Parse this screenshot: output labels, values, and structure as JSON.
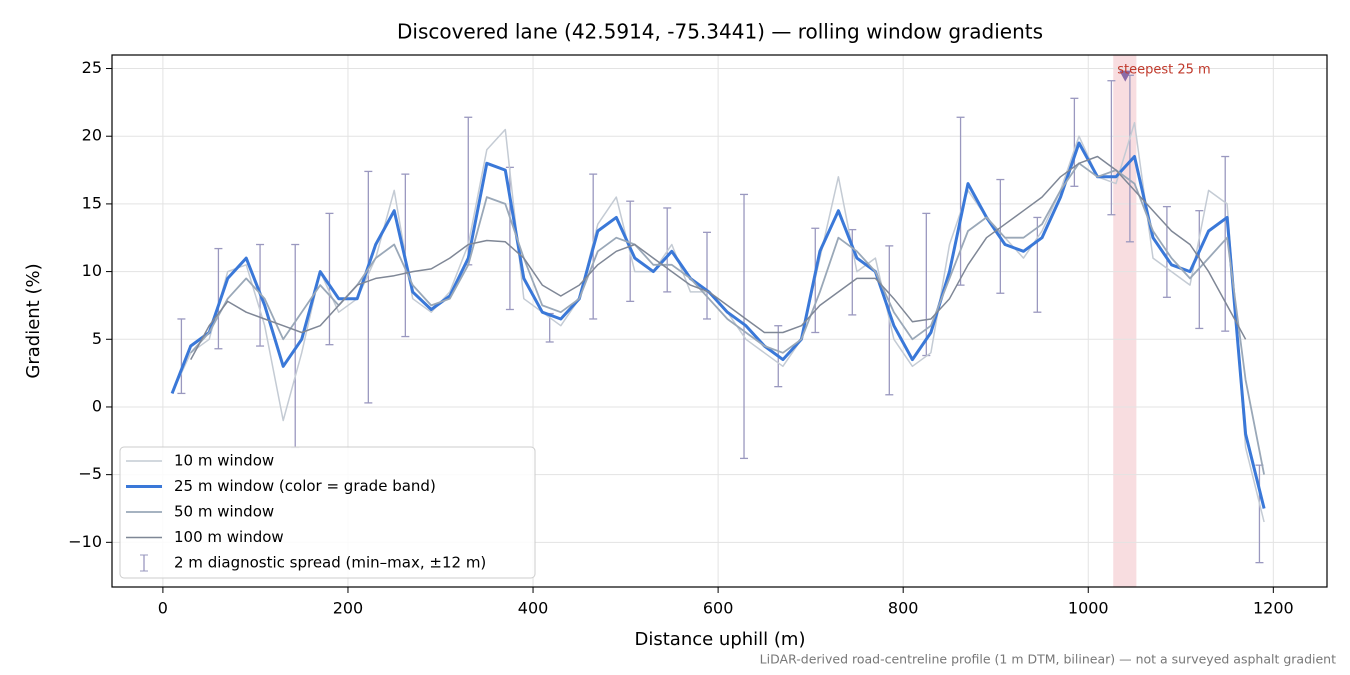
{
  "chart_data": {
    "type": "line",
    "title": "Discovered lane (42.5914, -75.3441) — rolling window gradients",
    "xlabel": "Distance uphill (m)",
    "ylabel": "Gradient (%)",
    "footnote": "LiDAR-derived road-centreline profile (1 m DTM, bilinear) — not a surveyed asphalt gradient",
    "xlim": [
      -55,
      1258
    ],
    "ylim": [
      -13.3,
      26
    ],
    "xticks": [
      0,
      200,
      400,
      600,
      800,
      1000,
      1200
    ],
    "yticks": [
      {
        "value": -10,
        "label": "−10"
      },
      {
        "value": -5,
        "label": "−5"
      },
      0,
      5,
      10,
      15,
      20,
      25
    ],
    "grid": true,
    "legend": "lower left",
    "x": [
      10,
      30,
      50,
      70,
      90,
      110,
      130,
      150,
      170,
      190,
      210,
      230,
      250,
      270,
      290,
      310,
      330,
      350,
      370,
      390,
      410,
      430,
      450,
      470,
      490,
      510,
      530,
      550,
      570,
      590,
      610,
      630,
      650,
      670,
      690,
      710,
      730,
      750,
      770,
      790,
      810,
      830,
      850,
      870,
      890,
      910,
      930,
      950,
      970,
      990,
      1010,
      1030,
      1050,
      1070,
      1090,
      1110,
      1130,
      1150,
      1170,
      1190
    ],
    "series": [
      {
        "name": "10 m window",
        "color": "#c4cbd4",
        "width": 1.5,
        "values": [
          1,
          4,
          5,
          10,
          10.5,
          6,
          -1,
          4,
          10,
          7,
          8,
          11,
          16,
          8,
          7,
          8.5,
          12,
          19,
          20.5,
          8,
          7,
          6,
          8,
          13.5,
          15.5,
          10,
          10,
          12,
          8.5,
          8.5,
          7,
          5,
          4,
          3,
          5,
          11,
          17,
          10,
          11,
          5,
          3,
          4,
          12,
          16,
          14,
          12.5,
          11,
          13,
          16,
          20,
          17,
          16.5,
          21,
          11,
          10,
          9,
          16,
          15,
          -3,
          -8.5
        ]
      },
      {
        "name": "25 m window (color = grade band)",
        "color": "#3a78d8",
        "width": 3,
        "values": [
          1,
          4.5,
          5.5,
          9.5,
          11,
          7.5,
          3,
          5,
          10,
          8,
          8,
          12,
          14.5,
          8.5,
          7.2,
          8.2,
          11,
          18,
          17.5,
          9.5,
          7,
          6.5,
          8,
          13,
          14,
          11,
          10,
          11.5,
          9.5,
          8.5,
          7,
          6,
          4.5,
          3.5,
          5,
          11.5,
          14.5,
          11,
          10,
          6,
          3.5,
          5.5,
          10,
          16.5,
          14,
          12,
          11.5,
          12.5,
          15.5,
          19.5,
          17,
          17,
          18.5,
          12.5,
          10.5,
          10,
          13,
          14,
          -2,
          -7.5
        ]
      },
      {
        "name": "50 m window",
        "color": "#9aa8b8",
        "width": 1.8,
        "values": [
          null,
          4,
          5.5,
          8,
          9.5,
          8,
          5,
          7,
          9,
          7.5,
          9,
          11,
          12,
          9,
          7.5,
          8,
          10.5,
          15.5,
          15,
          11,
          7.5,
          7,
          8,
          11.5,
          12.5,
          12,
          10.5,
          10.5,
          9.5,
          8,
          6.5,
          5.5,
          4.5,
          4,
          5,
          8.5,
          12.5,
          11.5,
          10,
          7,
          5,
          6,
          9.5,
          13,
          14,
          12.5,
          12.5,
          13.5,
          16,
          18,
          17,
          17.5,
          16.5,
          13,
          11,
          9.5,
          11,
          12.5,
          2,
          -5
        ]
      },
      {
        "name": "100 m window",
        "color": "#7f8796",
        "width": 1.5,
        "values": [
          null,
          3.5,
          6,
          7.8,
          7,
          6.5,
          6,
          5.5,
          6,
          7.5,
          9,
          9.5,
          9.7,
          10,
          10.2,
          11,
          12,
          12.3,
          12.2,
          11,
          9,
          8.2,
          9,
          10.5,
          11.5,
          12,
          11,
          10,
          9,
          8.5,
          7.5,
          6.5,
          5.5,
          5.5,
          6,
          7.5,
          8.5,
          9.5,
          9.5,
          8,
          6.3,
          6.5,
          8,
          10.5,
          12.5,
          13.5,
          14.5,
          15.5,
          17,
          18,
          18.5,
          17.5,
          16,
          14.5,
          13,
          12,
          10,
          7.5,
          5,
          null
        ]
      }
    ],
    "errorbars": {
      "name": "2 m diagnostic spread (min–max, ±12 m)",
      "color": "#9a98bf",
      "x": [
        20,
        60,
        105,
        143,
        180,
        222,
        262,
        330,
        375,
        418,
        465,
        505,
        545,
        588,
        628,
        665,
        705,
        745,
        785,
        825,
        862,
        905,
        945,
        985,
        1025,
        1045,
        1085,
        1120,
        1148,
        1185
      ],
      "low": [
        1,
        4.3,
        4.5,
        -3,
        4.6,
        0.3,
        5.2,
        10.5,
        7.2,
        4.8,
        6.5,
        7.8,
        8.5,
        6.5,
        -3.8,
        1.5,
        5.5,
        6.8,
        0.9,
        3.8,
        9,
        8.4,
        7,
        16.3,
        14.2,
        12.2,
        8.1,
        5.8,
        5.6,
        -11.5
      ],
      "high": [
        6.5,
        11.7,
        12,
        12,
        14.3,
        17.4,
        17.2,
        21.4,
        17.7,
        6.9,
        17.2,
        15.2,
        14.7,
        12.9,
        15.7,
        6,
        13.2,
        13.1,
        11.9,
        14.3,
        21.4,
        16.8,
        14,
        22.8,
        24.1,
        24.5,
        14.8,
        14.5,
        18.5,
        -4.3
      ]
    },
    "highlight": {
      "xlim": [
        1027,
        1052
      ],
      "color": "#f4c6cc",
      "label": "steepest 25 m",
      "label_color": "#c0392b",
      "marker_x": 1040,
      "marker_y": 24.4,
      "marker_color": "#8a6aa8"
    }
  }
}
